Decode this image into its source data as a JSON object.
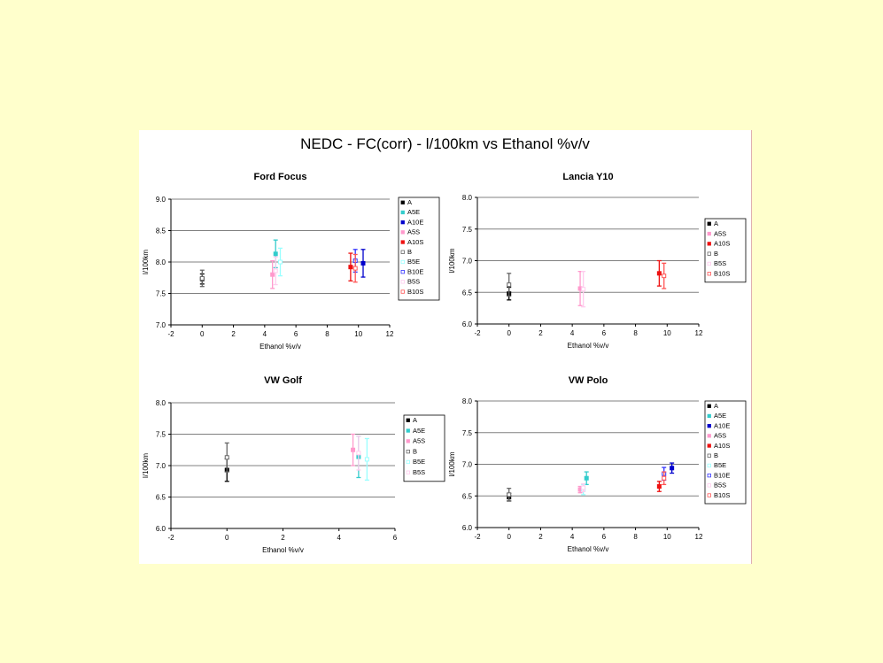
{
  "main_title": "NEDC - FC(corr) - l/100km  vs  Ethanol %v/v",
  "colors": {
    "background": "#ffffcc",
    "A": "#000000",
    "A5E": "#33cccc",
    "A10E": "#0000cc",
    "A5S": "#ff99cc",
    "A10S": "#ee1111",
    "B": "#666666",
    "B5E": "#99ffff",
    "B10E": "#3333ff",
    "B5S": "#ffccee",
    "B10S": "#ff5555"
  },
  "chart_data": [
    {
      "type": "scatter",
      "title": "Ford Focus",
      "xlabel": "Ethanol %v/v",
      "ylabel": "l/100km",
      "xlim": [
        -2,
        12
      ],
      "ylim": [
        7.0,
        9.0
      ],
      "xticks": [
        "-2",
        "0",
        "2",
        "4",
        "6",
        "8",
        "10",
        "12"
      ],
      "yticks": [
        "7.0",
        "7.5",
        "8.0",
        "8.5",
        "9.0"
      ],
      "legend": [
        "A",
        "A5E",
        "A10E",
        "A5S",
        "A10S",
        "B",
        "B5E",
        "B10E",
        "B5S",
        "B10S"
      ],
      "series": [
        {
          "name": "A",
          "x": 0,
          "y": 7.73,
          "err": 0.08,
          "marker": "square",
          "filled": true
        },
        {
          "name": "A5E",
          "x": 4.7,
          "y": 8.13,
          "err": 0.22,
          "marker": "square",
          "filled": true
        },
        {
          "name": "A10E",
          "x": 10.3,
          "y": 7.98,
          "err": 0.22,
          "marker": "square",
          "filled": true
        },
        {
          "name": "A5S",
          "x": 4.5,
          "y": 7.8,
          "err": 0.22,
          "marker": "square",
          "filled": true
        },
        {
          "name": "A10S",
          "x": 9.5,
          "y": 7.92,
          "err": 0.22,
          "marker": "square",
          "filled": true
        },
        {
          "name": "B",
          "x": 0.0,
          "y": 7.74,
          "err": 0.13,
          "marker": "square",
          "filled": false
        },
        {
          "name": "B5E",
          "x": 5.0,
          "y": 8.0,
          "err": 0.22,
          "marker": "square",
          "filled": false
        },
        {
          "name": "B10E",
          "x": 9.8,
          "y": 8.02,
          "err": 0.18,
          "marker": "square",
          "filled": false
        },
        {
          "name": "B5S",
          "x": 4.7,
          "y": 7.86,
          "err": 0.22,
          "marker": "square",
          "filled": false
        },
        {
          "name": "B10S",
          "x": 9.8,
          "y": 7.9,
          "err": 0.22,
          "marker": "square",
          "filled": false
        }
      ]
    },
    {
      "type": "scatter",
      "title": "Lancia Y10",
      "xlabel": "Ethanol %v/v",
      "ylabel": "l/100km",
      "xlim": [
        -2,
        12
      ],
      "ylim": [
        6.0,
        8.0
      ],
      "xticks": [
        "-2",
        "0",
        "2",
        "4",
        "6",
        "8",
        "10",
        "12"
      ],
      "yticks": [
        "6.0",
        "6.5",
        "7.0",
        "7.5",
        "8.0"
      ],
      "legend": [
        "A",
        "A5S",
        "A10S",
        "B",
        "B5S",
        "B10S"
      ],
      "series": [
        {
          "name": "A",
          "x": 0,
          "y": 6.48,
          "err": 0.1,
          "marker": "square",
          "filled": true
        },
        {
          "name": "A5S",
          "x": 4.5,
          "y": 6.56,
          "err": 0.27,
          "marker": "square",
          "filled": true
        },
        {
          "name": "A10S",
          "x": 9.5,
          "y": 6.8,
          "err": 0.2,
          "marker": "square",
          "filled": true
        },
        {
          "name": "B",
          "x": 0.0,
          "y": 6.62,
          "err": 0.18,
          "marker": "square",
          "filled": false
        },
        {
          "name": "B5S",
          "x": 4.7,
          "y": 6.55,
          "err": 0.28,
          "marker": "square",
          "filled": false
        },
        {
          "name": "B10S",
          "x": 9.8,
          "y": 6.76,
          "err": 0.2,
          "marker": "square",
          "filled": false
        }
      ]
    },
    {
      "type": "scatter",
      "title": "VW Golf",
      "xlabel": "Ethanol %v/v",
      "ylabel": "l/100km",
      "xlim": [
        -2,
        6
      ],
      "ylim": [
        6.0,
        8.0
      ],
      "xticks": [
        "-2",
        "0",
        "2",
        "4",
        "6"
      ],
      "yticks": [
        "6.0",
        "6.5",
        "7.0",
        "7.5",
        "8.0"
      ],
      "legend": [
        "A",
        "A5E",
        "A5S",
        "B",
        "B5E",
        "B5S"
      ],
      "series": [
        {
          "name": "A",
          "x": 0,
          "y": 6.93,
          "err": 0.18,
          "marker": "square",
          "filled": true
        },
        {
          "name": "A5E",
          "x": 4.7,
          "y": 7.14,
          "err": 0.33,
          "marker": "square",
          "filled": true
        },
        {
          "name": "A5S",
          "x": 4.5,
          "y": 7.25,
          "err": 0.25,
          "marker": "square",
          "filled": true
        },
        {
          "name": "B",
          "x": 0.0,
          "y": 7.13,
          "err": 0.23,
          "marker": "square",
          "filled": false
        },
        {
          "name": "B5E",
          "x": 5.0,
          "y": 7.1,
          "err": 0.33,
          "marker": "square",
          "filled": false
        },
        {
          "name": "B5S",
          "x": 4.7,
          "y": 7.2,
          "err": 0.27,
          "marker": "square",
          "filled": false
        }
      ]
    },
    {
      "type": "scatter",
      "title": "VW Polo",
      "xlabel": "Ethanol %v/v",
      "ylabel": "l/100km",
      "xlim": [
        -2,
        12
      ],
      "ylim": [
        6.0,
        8.0
      ],
      "xticks": [
        "-2",
        "0",
        "2",
        "4",
        "6",
        "8",
        "10",
        "12"
      ],
      "yticks": [
        "6.0",
        "6.5",
        "7.0",
        "7.5",
        "8.0"
      ],
      "legend": [
        "A",
        "A5E",
        "A10E",
        "A5S",
        "A10S",
        "B",
        "B5E",
        "B10E",
        "B5S",
        "B10S"
      ],
      "series": [
        {
          "name": "A",
          "x": 0,
          "y": 6.48,
          "err": 0.06,
          "marker": "square",
          "filled": true
        },
        {
          "name": "A5E",
          "x": 4.9,
          "y": 6.78,
          "err": 0.1,
          "marker": "square",
          "filled": true
        },
        {
          "name": "A10E",
          "x": 10.3,
          "y": 6.94,
          "err": 0.08,
          "marker": "square",
          "filled": true
        },
        {
          "name": "A5S",
          "x": 4.5,
          "y": 6.6,
          "err": 0.05,
          "marker": "square",
          "filled": true
        },
        {
          "name": "A10S",
          "x": 9.5,
          "y": 6.65,
          "err": 0.08,
          "marker": "square",
          "filled": true
        },
        {
          "name": "B",
          "x": 0.0,
          "y": 6.52,
          "err": 0.1,
          "marker": "square",
          "filled": false
        },
        {
          "name": "B5E",
          "x": 4.7,
          "y": 6.6,
          "err": 0.08,
          "marker": "square",
          "filled": false
        },
        {
          "name": "B10E",
          "x": 9.8,
          "y": 6.85,
          "err": 0.1,
          "marker": "square",
          "filled": false
        },
        {
          "name": "B5S",
          "x": 4.7,
          "y": 6.63,
          "err": 0.06,
          "marker": "square",
          "filled": false
        },
        {
          "name": "B10S",
          "x": 9.8,
          "y": 6.78,
          "err": 0.1,
          "marker": "square",
          "filled": false
        }
      ]
    }
  ]
}
